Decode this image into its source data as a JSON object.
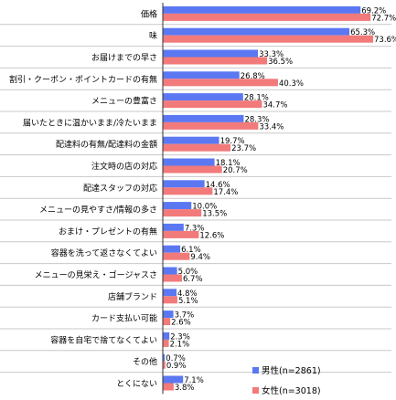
{
  "colors": {
    "male": "#5b78f2",
    "female": "#f27a7a"
  },
  "legend": [
    {
      "label": "男性(n=2861)",
      "color_key": "male"
    },
    {
      "label": "女性(n=3018)",
      "color_key": "female"
    }
  ],
  "chart_data": {
    "type": "bar",
    "orientation": "horizontal",
    "title": "",
    "xlabel": "",
    "ylabel": "",
    "xlim": [
      0,
      80
    ],
    "grid": false,
    "legend_position": "bottom-right",
    "categories": [
      "価格",
      "味",
      "お届けまでの早さ",
      "割引・クーポン・ポイントカードの有無",
      "メニューの豊富さ",
      "届いたときに温かいまま/冷たいまま",
      "配達料の有無/配達料の金額",
      "注文時の店の対応",
      "配達スタッフの対応",
      "メニューの見やすさ/情報の多さ",
      "おまけ・プレゼントの有無",
      "容器を洗って返さなくてよい",
      "メニューの見栄え・ゴージャスさ",
      "店舗ブランド",
      "カード支払い可能",
      "容器を自宅で捨てなくてよい",
      "その他",
      "とくにない"
    ],
    "series": [
      {
        "name": "男性(n=2861)",
        "values": [
          69.2,
          65.3,
          33.3,
          26.8,
          28.1,
          28.3,
          19.7,
          18.1,
          14.6,
          10.0,
          7.3,
          6.1,
          5.0,
          4.8,
          3.7,
          2.3,
          0.7,
          7.1
        ],
        "labels": [
          "69.2%",
          "65.3%",
          "33.3%",
          "26.8%",
          "28.1%",
          "28.3%",
          "19.7%",
          "18.1%",
          "14.6%",
          "10.0%",
          "7.3%",
          "6.1%",
          "5.0%",
          "4.8%",
          "3.7%",
          "2.3%",
          "0.7%",
          "7.1%"
        ]
      },
      {
        "name": "女性(n=3018)",
        "values": [
          72.7,
          73.6,
          36.5,
          40.3,
          34.7,
          33.4,
          23.7,
          20.7,
          17.4,
          13.5,
          12.6,
          9.4,
          6.7,
          5.1,
          2.6,
          2.1,
          0.9,
          3.8
        ],
        "labels": [
          "72.7%",
          "73.6%",
          "36.5%",
          "40.3%",
          "34.7%",
          "33.4%",
          "23.7%",
          "20.7%",
          "17.4%",
          "13.5%",
          "12.6%",
          "9.4%",
          "6.7%",
          "5.1%",
          "2.6%",
          "2.1%",
          "0.9%",
          "3.8%"
        ]
      }
    ]
  }
}
